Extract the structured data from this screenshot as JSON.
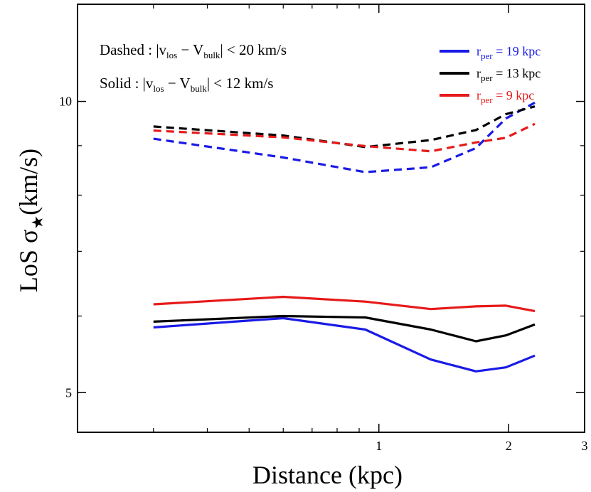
{
  "chart_data": {
    "type": "line",
    "xscale": "log",
    "yscale": "log",
    "xlabel": "Distance (kpc)",
    "ylabel": {
      "base": "LoS σ",
      "subscript": "★",
      "unit": "(km/s)"
    },
    "xlim": [
      0.2,
      3
    ],
    "ylim": [
      4.55,
      12.6
    ],
    "x_ticks": [
      {
        "value": 1,
        "label": "1"
      },
      {
        "value": 2,
        "label": "2"
      },
      {
        "value": 3,
        "label": "3"
      }
    ],
    "x_minor_ticks": [
      0.3,
      0.4,
      0.5,
      0.6,
      0.7,
      0.8,
      0.9
    ],
    "y_ticks": [
      {
        "value": 5,
        "label": "5"
      },
      {
        "value": 10,
        "label": "10"
      }
    ],
    "y_minor_ticks": [
      6,
      7,
      8,
      9
    ],
    "annotations": [
      {
        "id": "dashed",
        "prefix": "Dashed : |v",
        "sub1": "los",
        "mid": " − V",
        "sub2": "bulk",
        "suffix": "| < 20 km/s"
      },
      {
        "id": "solid",
        "prefix": "Solid : |v",
        "sub1": "los",
        "mid": " − V",
        "sub2": "bulk",
        "suffix": "| < 12 km/s"
      }
    ],
    "legend": {
      "position": "top-right",
      "entries": [
        {
          "label_base": "r",
          "label_sub": "per",
          "label_rest": " = 19 kpc",
          "color": "#1a1ae6"
        },
        {
          "label_base": "r",
          "label_sub": "per",
          "label_rest": " = 13 kpc",
          "color": "#000000"
        },
        {
          "label_base": "r",
          "label_sub": "per",
          "label_rest": " = 9 kpc",
          "color": "#e61a1a"
        }
      ]
    },
    "x": [
      0.3,
      0.6,
      0.93,
      1.32,
      1.68,
      1.97,
      2.3
    ],
    "series": [
      {
        "name": "rper19 dashed",
        "color": "#1a1ae6",
        "dash": true,
        "values": [
          9.15,
          8.75,
          8.45,
          8.55,
          8.95,
          9.6,
          9.97
        ]
      },
      {
        "name": "rper13 dashed",
        "color": "#000000",
        "dash": true,
        "values": [
          9.42,
          9.22,
          8.97,
          9.12,
          9.34,
          9.7,
          9.88
        ]
      },
      {
        "name": "rper9 dashed",
        "color": "#e61a1a",
        "dash": true,
        "values": [
          9.33,
          9.18,
          8.99,
          8.88,
          9.07,
          9.17,
          9.48
        ]
      },
      {
        "name": "rper19 solid",
        "color": "#1a1ae6",
        "dash": false,
        "values": [
          5.84,
          5.97,
          5.81,
          5.41,
          5.26,
          5.31,
          5.46
        ]
      },
      {
        "name": "rper13 solid",
        "color": "#000000",
        "dash": false,
        "values": [
          5.92,
          6.0,
          5.98,
          5.81,
          5.65,
          5.73,
          5.88
        ]
      },
      {
        "name": "rper9 solid",
        "color": "#e61a1a",
        "dash": false,
        "values": [
          6.17,
          6.28,
          6.21,
          6.1,
          6.14,
          6.15,
          6.07
        ]
      }
    ]
  }
}
